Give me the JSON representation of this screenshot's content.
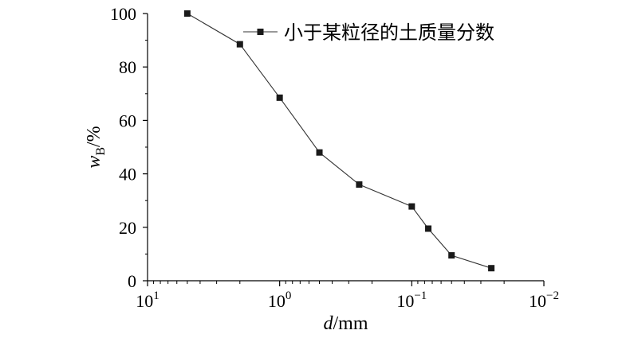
{
  "chart_data": {
    "type": "line",
    "title": "",
    "xlabel": {
      "var": "d",
      "rest": "/mm"
    },
    "ylabel": {
      "var": "w",
      "sub": "B",
      "rest": "/%"
    },
    "x_scale": "log",
    "x_reversed": true,
    "xlim": [
      10,
      0.01
    ],
    "ylim": [
      0,
      100
    ],
    "x_ticks": [
      {
        "value": 10,
        "base": "10",
        "exp": "1"
      },
      {
        "value": 1,
        "base": "10",
        "exp": "0"
      },
      {
        "value": 0.1,
        "base": "10",
        "exp": "−1"
      },
      {
        "value": 0.01,
        "base": "10",
        "exp": "−2"
      }
    ],
    "y_ticks": [
      {
        "value": 0,
        "label": "0"
      },
      {
        "value": 20,
        "label": "20"
      },
      {
        "value": 40,
        "label": "40"
      },
      {
        "value": 60,
        "label": "60"
      },
      {
        "value": 80,
        "label": "80"
      },
      {
        "value": 100,
        "label": "100"
      }
    ],
    "grid": false,
    "legend_position": "top-right",
    "series": [
      {
        "name": "小于某粒径的土质量分数",
        "marker": "square",
        "x": [
          5,
          2,
          1,
          0.5,
          0.25,
          0.1,
          0.075,
          0.05,
          0.025
        ],
        "y": [
          100,
          88.5,
          68.5,
          48,
          36,
          27.8,
          19.5,
          9.5,
          4.7
        ]
      }
    ]
  }
}
